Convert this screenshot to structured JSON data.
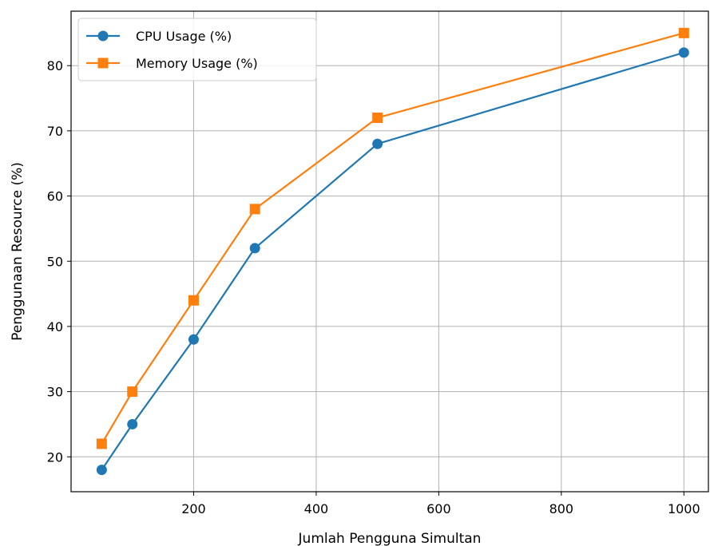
{
  "chart_data": {
    "type": "line",
    "title": "",
    "xlabel": "Jumlah Pengguna Simultan",
    "ylabel": "Penggunaan Resource (%)",
    "x": [
      50,
      100,
      200,
      300,
      500,
      1000
    ],
    "series": [
      {
        "name": "CPU Usage (%)",
        "values": [
          18,
          25,
          38,
          52,
          68,
          82
        ],
        "color": "#1f77b4",
        "marker": "circle"
      },
      {
        "name": "Memory Usage (%)",
        "values": [
          22,
          30,
          44,
          58,
          72,
          85
        ],
        "color": "#ff7f0e",
        "marker": "square"
      }
    ],
    "xlim": [
      0,
      1040
    ],
    "ylim": [
      14.65,
      88.35
    ],
    "xticks": [
      200,
      400,
      600,
      800,
      1000
    ],
    "yticks": [
      20,
      30,
      40,
      50,
      60,
      70,
      80
    ],
    "xtick_labels": [
      "200",
      "400",
      "600",
      "800",
      "1000"
    ],
    "ytick_labels": [
      "20",
      "30",
      "40",
      "50",
      "60",
      "70",
      "80"
    ],
    "grid": true,
    "legend_position": "upper-left"
  }
}
